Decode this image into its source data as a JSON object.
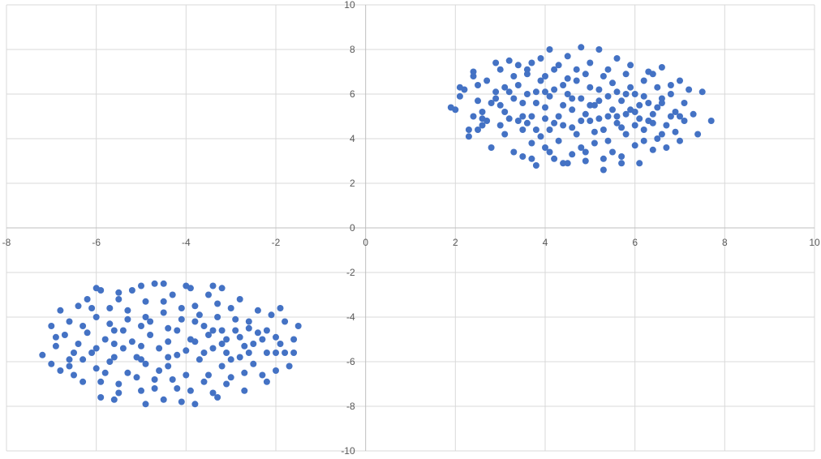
{
  "chart_data": {
    "type": "scatter",
    "title": "",
    "xlabel": "",
    "ylabel": "",
    "xlim": [
      -8,
      10
    ],
    "ylim": [
      -10,
      10
    ],
    "x_ticks": [
      -8,
      -6,
      -4,
      -2,
      0,
      2,
      4,
      6,
      8,
      10
    ],
    "y_ticks": [
      -10,
      -8,
      -6,
      -4,
      -2,
      0,
      2,
      4,
      6,
      8,
      10
    ],
    "grid": true,
    "legend": "none",
    "series_color": "#4472c4",
    "series": [
      {
        "points": [
          [
            1.9,
            5.4
          ],
          [
            2.0,
            5.3
          ],
          [
            2.1,
            5.9
          ],
          [
            2.1,
            6.3
          ],
          [
            2.2,
            6.2
          ],
          [
            2.3,
            4.4
          ],
          [
            2.3,
            4.1
          ],
          [
            2.4,
            5.0
          ],
          [
            2.4,
            6.8
          ],
          [
            2.4,
            7.0
          ],
          [
            2.5,
            5.7
          ],
          [
            2.5,
            6.4
          ],
          [
            2.6,
            5.2
          ],
          [
            2.6,
            4.6
          ],
          [
            2.7,
            4.8
          ],
          [
            2.7,
            6.6
          ],
          [
            2.8,
            3.6
          ],
          [
            2.8,
            5.6
          ],
          [
            2.9,
            5.8
          ],
          [
            2.9,
            7.4
          ],
          [
            3.0,
            4.6
          ],
          [
            3.0,
            7.1
          ],
          [
            3.1,
            5.2
          ],
          [
            3.1,
            6.3
          ],
          [
            3.2,
            4.9
          ],
          [
            3.2,
            7.5
          ],
          [
            3.3,
            3.4
          ],
          [
            3.3,
            5.8
          ],
          [
            3.4,
            6.4
          ],
          [
            3.4,
            7.3
          ],
          [
            3.5,
            3.2
          ],
          [
            3.5,
            4.4
          ],
          [
            3.5,
            5.6
          ],
          [
            3.6,
            6.9
          ],
          [
            3.6,
            4.7
          ],
          [
            3.7,
            7.4
          ],
          [
            3.7,
            5.0
          ],
          [
            3.8,
            2.8
          ],
          [
            3.8,
            6.1
          ],
          [
            3.9,
            4.1
          ],
          [
            3.9,
            7.6
          ],
          [
            4.0,
            3.6
          ],
          [
            4.0,
            5.4
          ],
          [
            4.0,
            6.8
          ],
          [
            4.1,
            8.0
          ],
          [
            4.1,
            4.4
          ],
          [
            4.2,
            3.1
          ],
          [
            4.2,
            6.2
          ],
          [
            4.3,
            7.3
          ],
          [
            4.3,
            5.0
          ],
          [
            4.4,
            2.9
          ],
          [
            4.4,
            4.6
          ],
          [
            4.5,
            6.0
          ],
          [
            4.5,
            7.7
          ],
          [
            4.6,
            3.3
          ],
          [
            4.6,
            5.3
          ],
          [
            4.7,
            6.6
          ],
          [
            4.7,
            4.2
          ],
          [
            4.8,
            8.1
          ],
          [
            4.8,
            5.8
          ],
          [
            4.9,
            3.0
          ],
          [
            4.9,
            6.9
          ],
          [
            5.0,
            4.8
          ],
          [
            5.0,
            7.4
          ],
          [
            5.1,
            5.5
          ],
          [
            5.1,
            3.8
          ],
          [
            5.2,
            6.2
          ],
          [
            5.2,
            8.0
          ],
          [
            5.3,
            4.4
          ],
          [
            5.3,
            2.6
          ],
          [
            5.4,
            7.1
          ],
          [
            5.4,
            5.0
          ],
          [
            5.5,
            3.4
          ],
          [
            5.5,
            6.5
          ],
          [
            5.6,
            7.6
          ],
          [
            5.6,
            4.7
          ],
          [
            5.7,
            5.7
          ],
          [
            5.7,
            3.2
          ],
          [
            5.8,
            6.9
          ],
          [
            5.8,
            4.2
          ],
          [
            5.9,
            5.3
          ],
          [
            5.9,
            7.3
          ],
          [
            6.0,
            3.7
          ],
          [
            6.0,
            6.0
          ],
          [
            6.1,
            4.9
          ],
          [
            6.1,
            2.9
          ],
          [
            6.2,
            6.6
          ],
          [
            6.2,
            4.4
          ],
          [
            6.3,
            5.6
          ],
          [
            6.3,
            7.0
          ],
          [
            6.4,
            3.5
          ],
          [
            6.4,
            5.1
          ],
          [
            6.5,
            6.3
          ],
          [
            6.5,
            4.0
          ],
          [
            6.6,
            5.8
          ],
          [
            6.6,
            7.2
          ],
          [
            6.7,
            4.6
          ],
          [
            6.7,
            3.6
          ],
          [
            6.8,
            6.0
          ],
          [
            6.9,
            5.2
          ],
          [
            6.9,
            4.3
          ],
          [
            7.0,
            6.6
          ],
          [
            7.0,
            3.9
          ],
          [
            7.1,
            5.6
          ],
          [
            7.1,
            4.8
          ],
          [
            7.2,
            6.2
          ],
          [
            7.3,
            5.1
          ],
          [
            7.4,
            4.2
          ],
          [
            7.5,
            6.1
          ],
          [
            7.7,
            4.8
          ],
          [
            2.6,
            4.9
          ],
          [
            2.9,
            6.1
          ],
          [
            3.1,
            4.2
          ],
          [
            3.3,
            6.8
          ],
          [
            3.4,
            4.8
          ],
          [
            3.6,
            6.0
          ],
          [
            3.7,
            3.8
          ],
          [
            3.8,
            5.6
          ],
          [
            3.9,
            6.6
          ],
          [
            4.0,
            4.9
          ],
          [
            4.1,
            5.9
          ],
          [
            4.2,
            7.1
          ],
          [
            4.3,
            3.9
          ],
          [
            4.4,
            5.5
          ],
          [
            4.5,
            6.7
          ],
          [
            4.6,
            4.5
          ],
          [
            4.7,
            7.1
          ],
          [
            4.8,
            3.6
          ],
          [
            4.9,
            5.1
          ],
          [
            5.0,
            6.3
          ],
          [
            5.1,
            4.3
          ],
          [
            5.2,
            5.7
          ],
          [
            5.3,
            6.8
          ],
          [
            5.4,
            3.9
          ],
          [
            5.5,
            5.3
          ],
          [
            5.6,
            6.1
          ],
          [
            5.7,
            4.5
          ],
          [
            5.8,
            5.1
          ],
          [
            5.9,
            6.3
          ],
          [
            6.0,
            4.6
          ],
          [
            6.1,
            5.5
          ],
          [
            6.2,
            3.9
          ],
          [
            6.3,
            4.8
          ],
          [
            6.4,
            6.9
          ],
          [
            6.5,
            5.4
          ],
          [
            6.6,
            4.2
          ],
          [
            6.8,
            5.0
          ],
          [
            2.5,
            4.4
          ],
          [
            3.0,
            5.5
          ],
          [
            3.2,
            6.1
          ],
          [
            3.5,
            5.0
          ],
          [
            3.6,
            7.1
          ],
          [
            3.8,
            4.4
          ],
          [
            4.0,
            6.1
          ],
          [
            4.2,
            4.7
          ],
          [
            4.4,
            6.4
          ],
          [
            4.6,
            5.8
          ],
          [
            4.8,
            4.8
          ],
          [
            5.0,
            5.5
          ],
          [
            5.2,
            4.9
          ],
          [
            5.4,
            5.9
          ],
          [
            5.6,
            5.0
          ],
          [
            5.8,
            6.0
          ],
          [
            6.0,
            5.2
          ],
          [
            6.2,
            5.9
          ],
          [
            6.4,
            4.7
          ],
          [
            6.6,
            5.6
          ],
          [
            6.8,
            6.4
          ],
          [
            7.0,
            5.0
          ],
          [
            4.5,
            2.9
          ],
          [
            4.9,
            3.4
          ],
          [
            5.3,
            3.1
          ],
          [
            5.7,
            2.9
          ],
          [
            4.1,
            3.4
          ],
          [
            3.7,
            3.1
          ]
        ]
      },
      {
        "points": [
          [
            -7.2,
            -5.7
          ],
          [
            -7.0,
            -4.4
          ],
          [
            -7.0,
            -6.1
          ],
          [
            -6.9,
            -5.3
          ],
          [
            -6.8,
            -6.4
          ],
          [
            -6.8,
            -3.7
          ],
          [
            -6.7,
            -4.8
          ],
          [
            -6.6,
            -5.9
          ],
          [
            -6.6,
            -4.2
          ],
          [
            -6.5,
            -6.6
          ],
          [
            -6.4,
            -3.5
          ],
          [
            -6.4,
            -5.2
          ],
          [
            -6.3,
            -4.4
          ],
          [
            -6.3,
            -6.9
          ],
          [
            -6.2,
            -3.2
          ],
          [
            -6.1,
            -5.6
          ],
          [
            -6.0,
            -4.0
          ],
          [
            -6.0,
            -6.3
          ],
          [
            -5.9,
            -2.8
          ],
          [
            -5.9,
            -7.6
          ],
          [
            -5.8,
            -5.0
          ],
          [
            -5.7,
            -3.6
          ],
          [
            -5.7,
            -6.0
          ],
          [
            -5.6,
            -4.6
          ],
          [
            -5.5,
            -7.0
          ],
          [
            -5.5,
            -3.2
          ],
          [
            -5.4,
            -5.4
          ],
          [
            -5.3,
            -4.1
          ],
          [
            -5.3,
            -6.5
          ],
          [
            -5.2,
            -2.8
          ],
          [
            -5.1,
            -5.8
          ],
          [
            -5.0,
            -4.4
          ],
          [
            -5.0,
            -7.3
          ],
          [
            -4.9,
            -3.3
          ],
          [
            -4.9,
            -6.1
          ],
          [
            -4.8,
            -4.8
          ],
          [
            -4.7,
            -2.5
          ],
          [
            -4.7,
            -6.8
          ],
          [
            -4.6,
            -5.4
          ],
          [
            -4.5,
            -3.8
          ],
          [
            -4.5,
            -7.7
          ],
          [
            -4.4,
            -4.5
          ],
          [
            -4.4,
            -6.2
          ],
          [
            -4.3,
            -3.0
          ],
          [
            -4.2,
            -5.7
          ],
          [
            -4.2,
            -7.2
          ],
          [
            -4.1,
            -4.1
          ],
          [
            -4.0,
            -2.6
          ],
          [
            -4.0,
            -6.6
          ],
          [
            -3.9,
            -5.0
          ],
          [
            -3.8,
            -3.5
          ],
          [
            -3.8,
            -7.9
          ],
          [
            -3.7,
            -5.9
          ],
          [
            -3.6,
            -4.4
          ],
          [
            -3.6,
            -6.9
          ],
          [
            -3.5,
            -3.0
          ],
          [
            -3.4,
            -5.4
          ],
          [
            -3.4,
            -7.4
          ],
          [
            -3.3,
            -4.0
          ],
          [
            -3.2,
            -6.2
          ],
          [
            -3.2,
            -2.7
          ],
          [
            -3.1,
            -5.0
          ],
          [
            -3.0,
            -3.6
          ],
          [
            -3.0,
            -6.7
          ],
          [
            -2.9,
            -4.6
          ],
          [
            -2.8,
            -5.8
          ],
          [
            -2.8,
            -3.2
          ],
          [
            -2.7,
            -7.3
          ],
          [
            -2.6,
            -4.2
          ],
          [
            -2.5,
            -6.1
          ],
          [
            -2.5,
            -5.2
          ],
          [
            -2.4,
            -3.7
          ],
          [
            -2.3,
            -6.6
          ],
          [
            -2.2,
            -4.6
          ],
          [
            -2.2,
            -5.6
          ],
          [
            -2.1,
            -3.9
          ],
          [
            -2.0,
            -6.4
          ],
          [
            -2.0,
            -4.9
          ],
          [
            -1.9,
            -3.6
          ],
          [
            -1.8,
            -5.6
          ],
          [
            -1.8,
            -4.2
          ],
          [
            -1.7,
            -6.2
          ],
          [
            -1.6,
            -5.0
          ],
          [
            -1.5,
            -4.4
          ],
          [
            -1.6,
            -5.6
          ],
          [
            -1.9,
            -5.2
          ],
          [
            -2.3,
            -5.0
          ],
          [
            -2.7,
            -5.3
          ],
          [
            -3.1,
            -5.6
          ],
          [
            -3.5,
            -4.8
          ],
          [
            -6.9,
            -4.9
          ],
          [
            -6.5,
            -5.6
          ],
          [
            -6.2,
            -4.7
          ],
          [
            -6.0,
            -5.4
          ],
          [
            -5.8,
            -6.5
          ],
          [
            -5.6,
            -5.8
          ],
          [
            -5.4,
            -4.6
          ],
          [
            -5.2,
            -5.1
          ],
          [
            -5.0,
            -5.9
          ],
          [
            -4.8,
            -4.2
          ],
          [
            -4.6,
            -6.4
          ],
          [
            -4.4,
            -5.1
          ],
          [
            -4.2,
            -4.6
          ],
          [
            -4.0,
            -5.5
          ],
          [
            -3.8,
            -4.2
          ],
          [
            -3.6,
            -5.6
          ],
          [
            -3.4,
            -4.6
          ],
          [
            -3.2,
            -5.2
          ],
          [
            -3.0,
            -5.9
          ],
          [
            -2.8,
            -4.9
          ],
          [
            -2.6,
            -5.6
          ],
          [
            -2.4,
            -4.7
          ],
          [
            -2.2,
            -6.9
          ],
          [
            -2.0,
            -5.6
          ],
          [
            -6.6,
            -6.2
          ],
          [
            -6.1,
            -3.6
          ],
          [
            -5.7,
            -4.3
          ],
          [
            -5.3,
            -3.7
          ],
          [
            -4.9,
            -4.0
          ],
          [
            -4.5,
            -3.3
          ],
          [
            -4.1,
            -3.6
          ],
          [
            -3.7,
            -3.9
          ],
          [
            -3.3,
            -3.4
          ],
          [
            -2.9,
            -4.1
          ],
          [
            -5.9,
            -6.9
          ],
          [
            -5.5,
            -7.4
          ],
          [
            -5.1,
            -6.7
          ],
          [
            -4.7,
            -7.2
          ],
          [
            -4.3,
            -6.8
          ],
          [
            -3.9,
            -7.3
          ],
          [
            -3.5,
            -6.6
          ],
          [
            -3.1,
            -7.0
          ],
          [
            -2.7,
            -6.5
          ],
          [
            -6.3,
            -5.9
          ],
          [
            -5.6,
            -5.2
          ],
          [
            -5.0,
            -5.3
          ],
          [
            -4.4,
            -5.8
          ],
          [
            -3.8,
            -5.1
          ],
          [
            -3.2,
            -4.6
          ],
          [
            -2.6,
            -4.5
          ],
          [
            -4.9,
            -7.9
          ],
          [
            -4.1,
            -7.8
          ],
          [
            -5.6,
            -7.7
          ],
          [
            -3.3,
            -7.6
          ],
          [
            -4.5,
            -2.5
          ],
          [
            -5.0,
            -2.6
          ],
          [
            -3.9,
            -2.7
          ],
          [
            -5.5,
            -2.9
          ],
          [
            -3.4,
            -2.6
          ],
          [
            -6.0,
            -2.7
          ]
        ]
      }
    ]
  }
}
